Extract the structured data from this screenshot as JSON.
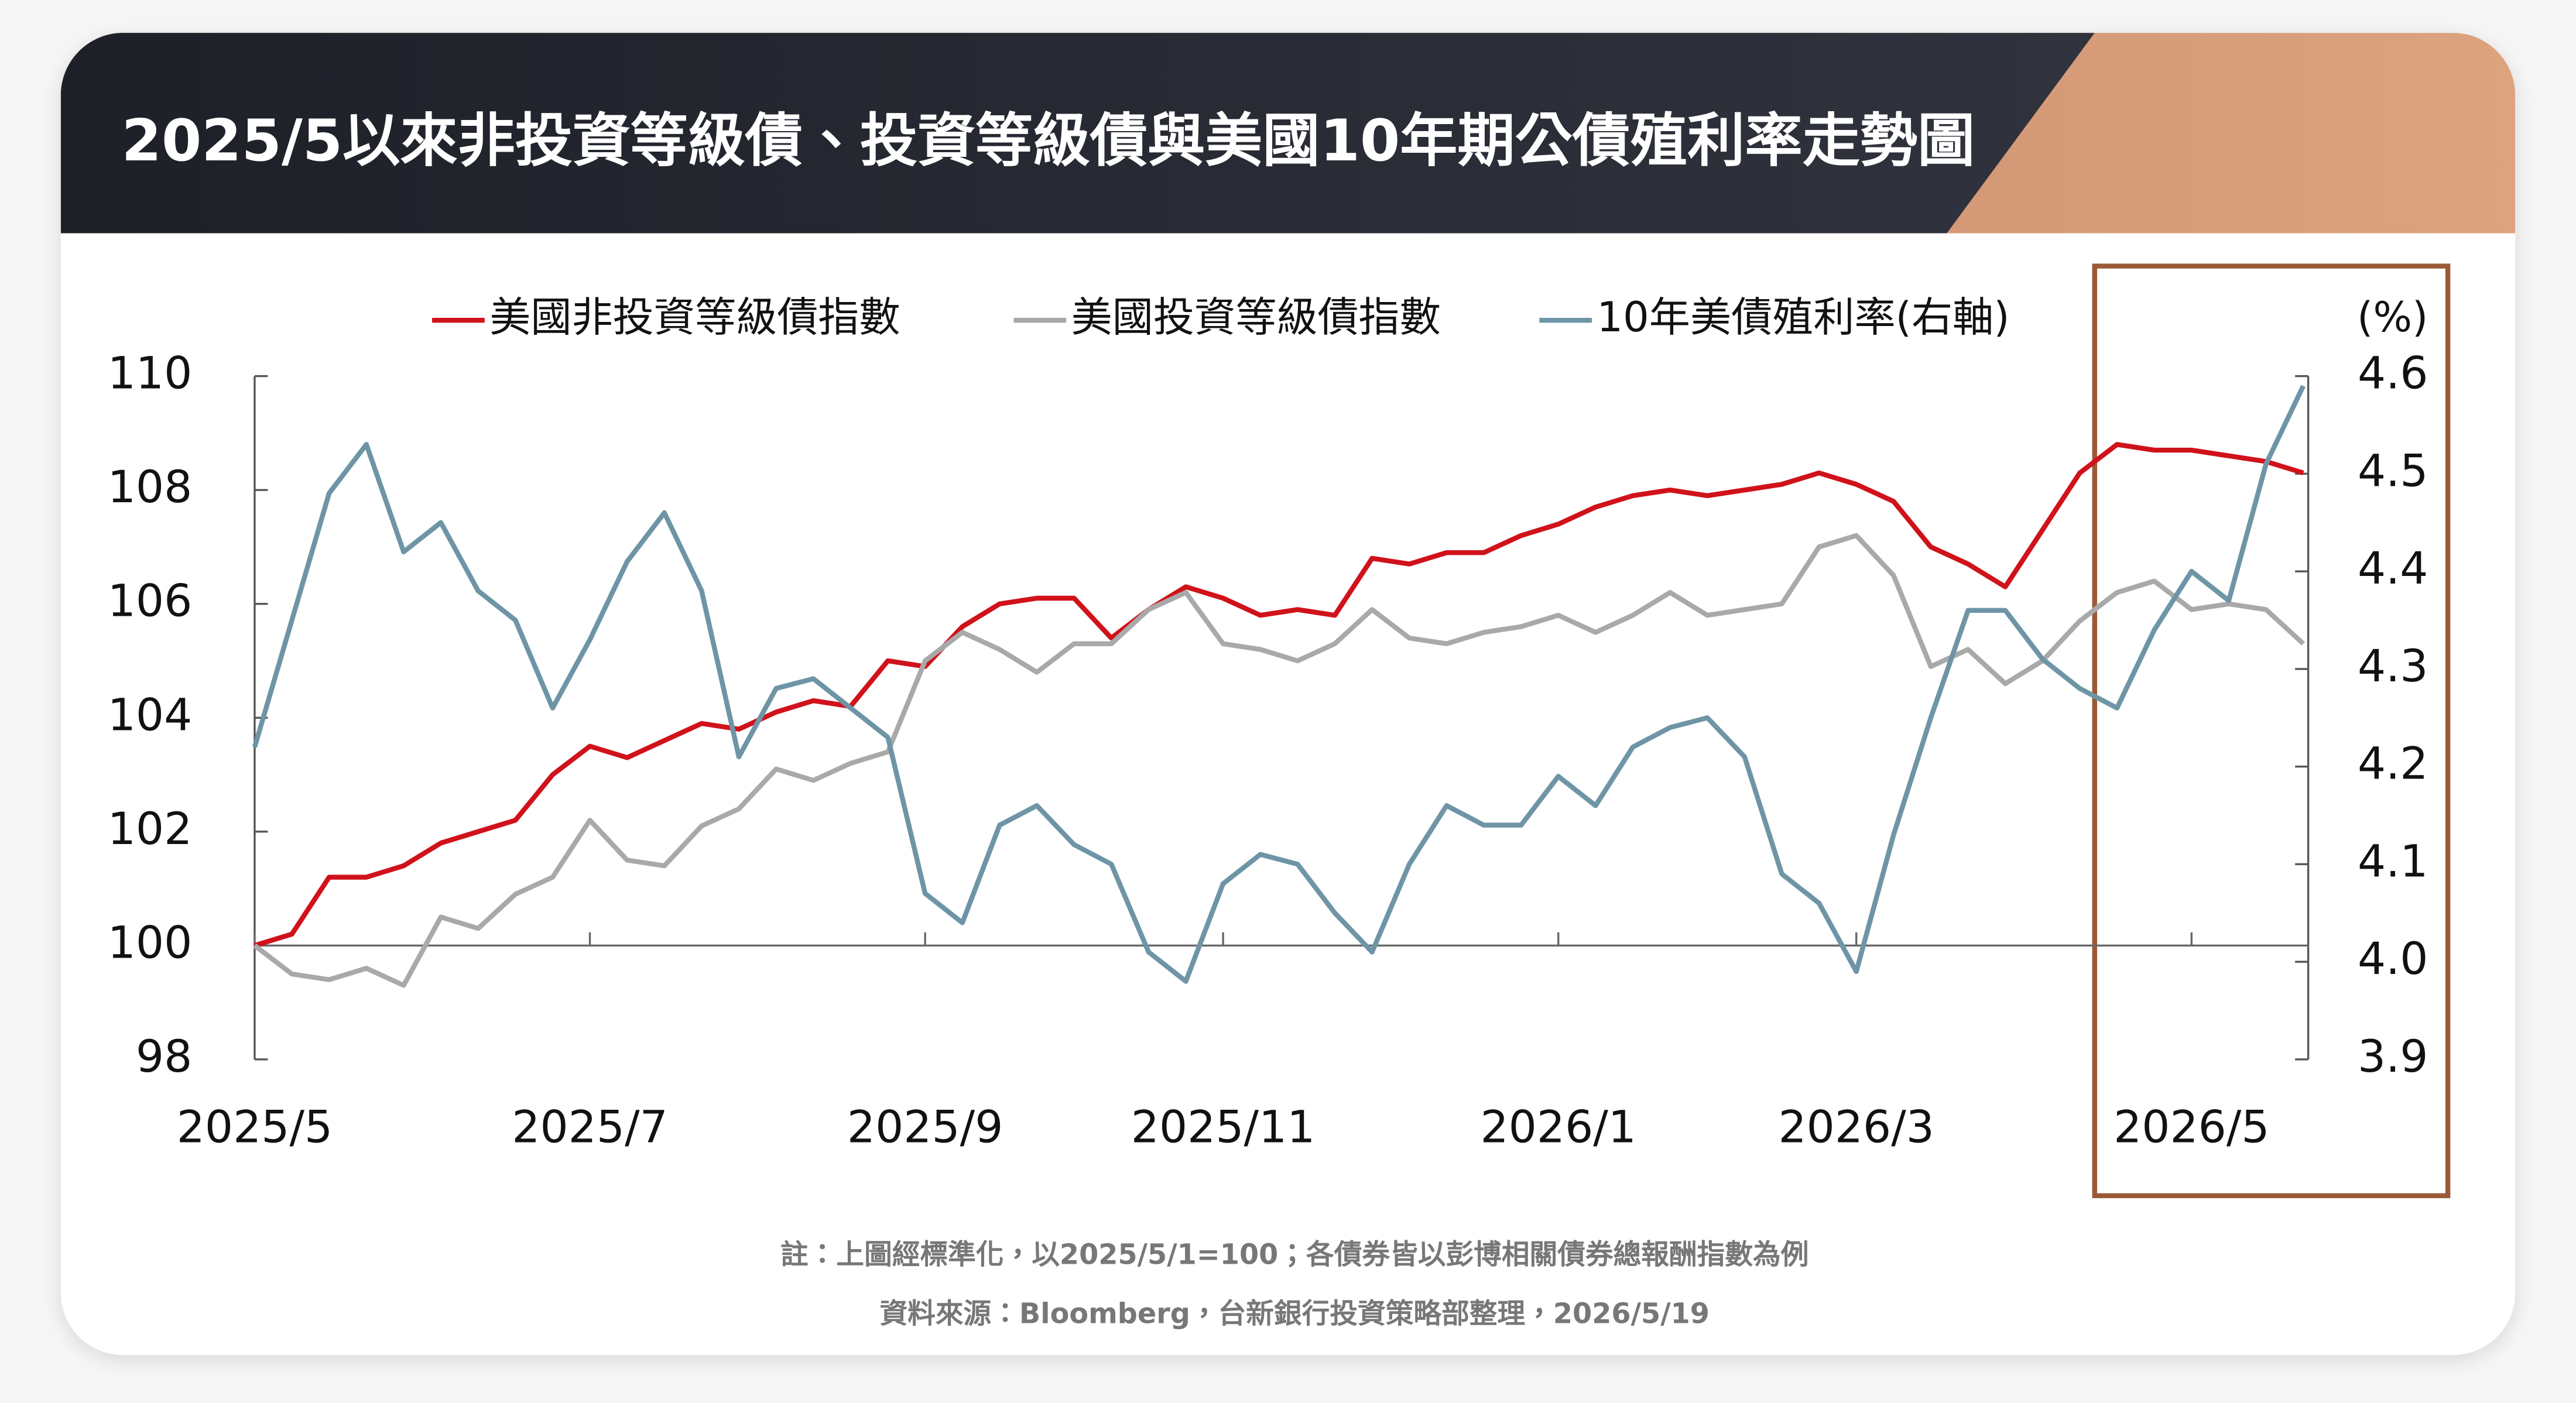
{
  "chart_data": {
    "type": "line",
    "title": "2025/5以來非投資等級債、投資等級債與美國10年期公債殖利率走勢圖",
    "categories": [
      "2025/5",
      null,
      null,
      null,
      null,
      null,
      null,
      null,
      null,
      "2025/7",
      null,
      null,
      null,
      null,
      null,
      null,
      null,
      null,
      "2025/9",
      null,
      null,
      null,
      null,
      null,
      null,
      null,
      "2025/11",
      null,
      null,
      null,
      null,
      null,
      null,
      null,
      null,
      "2026/1",
      null,
      null,
      null,
      null,
      null,
      null,
      null,
      "2026/3",
      null,
      null,
      null,
      null,
      null,
      null,
      null,
      null,
      "2026/5",
      null,
      null,
      null
    ],
    "series": [
      {
        "name": "美國非投資等級債指數",
        "color": "#d0121b",
        "values": [
          100.0,
          100.2,
          101.2,
          101.2,
          101.4,
          101.8,
          102.0,
          102.2,
          103.0,
          103.5,
          103.3,
          103.6,
          103.9,
          103.8,
          104.1,
          104.3,
          104.2,
          105.0,
          104.9,
          105.6,
          106.0,
          106.1,
          106.1,
          105.4,
          105.9,
          106.3,
          106.1,
          105.8,
          105.9,
          105.8,
          106.8,
          106.7,
          106.9,
          106.9,
          107.2,
          107.4,
          107.7,
          107.9,
          108.0,
          107.9,
          108.0,
          108.1,
          108.3,
          108.1,
          107.8,
          107.0,
          106.7,
          106.3,
          107.3,
          108.3,
          108.8,
          108.7,
          108.7,
          108.6,
          108.5,
          108.3
        ]
      },
      {
        "name": "美國投資等級債指數",
        "color": "#a9a9a9",
        "values": [
          100.0,
          99.5,
          99.4,
          99.6,
          99.3,
          100.5,
          100.3,
          100.9,
          101.2,
          102.2,
          101.5,
          101.4,
          102.1,
          102.4,
          103.1,
          102.9,
          103.2,
          103.4,
          105.0,
          105.5,
          105.2,
          104.8,
          105.3,
          105.3,
          105.9,
          106.2,
          105.3,
          105.2,
          105.0,
          105.3,
          105.9,
          105.4,
          105.3,
          105.5,
          105.6,
          105.8,
          105.5,
          105.8,
          106.2,
          105.8,
          105.9,
          106.0,
          107.0,
          107.2,
          106.5,
          104.9,
          105.2,
          104.6,
          105.0,
          105.7,
          106.2,
          106.4,
          105.9,
          106.0,
          105.9,
          105.3
        ]
      },
      {
        "name": "10年美債殖利率(右軸)",
        "color": "#6e95a6",
        "axis": "y2",
        "values": [
          4.22,
          4.35,
          4.48,
          4.53,
          4.42,
          4.45,
          4.38,
          4.35,
          4.26,
          4.33,
          4.41,
          4.46,
          4.38,
          4.21,
          4.28,
          4.29,
          4.26,
          4.23,
          4.07,
          4.04,
          4.14,
          4.16,
          4.12,
          4.1,
          4.01,
          3.98,
          4.08,
          4.11,
          4.1,
          4.05,
          4.01,
          4.1,
          4.16,
          4.14,
          4.14,
          4.19,
          4.16,
          4.22,
          4.24,
          4.25,
          4.21,
          4.09,
          4.06,
          3.99,
          4.13,
          4.25,
          4.36,
          4.36,
          4.31,
          4.28,
          4.26,
          4.34,
          4.4,
          4.37,
          4.51,
          4.59
        ]
      }
    ],
    "ylim": [
      98,
      110
    ],
    "yticks": [
      98,
      100,
      102,
      104,
      106,
      108,
      110
    ],
    "y2lim": [
      3.9,
      4.6
    ],
    "y2ticks": [
      3.9,
      {
        "value": 4,
        "label": "4.0"
      },
      4.1,
      4.2,
      4.3,
      4.4,
      4.5,
      4.6
    ],
    "y2_unit": "(%)",
    "hline": 100,
    "notes": [
      "註：上圖經標準化，以2025/5/1=100；各債券皆以彭博相關債券總報酬指數為例",
      "資料來源：Bloomberg，台新銀行投資策略部整理，2026/5/19"
    ]
  }
}
